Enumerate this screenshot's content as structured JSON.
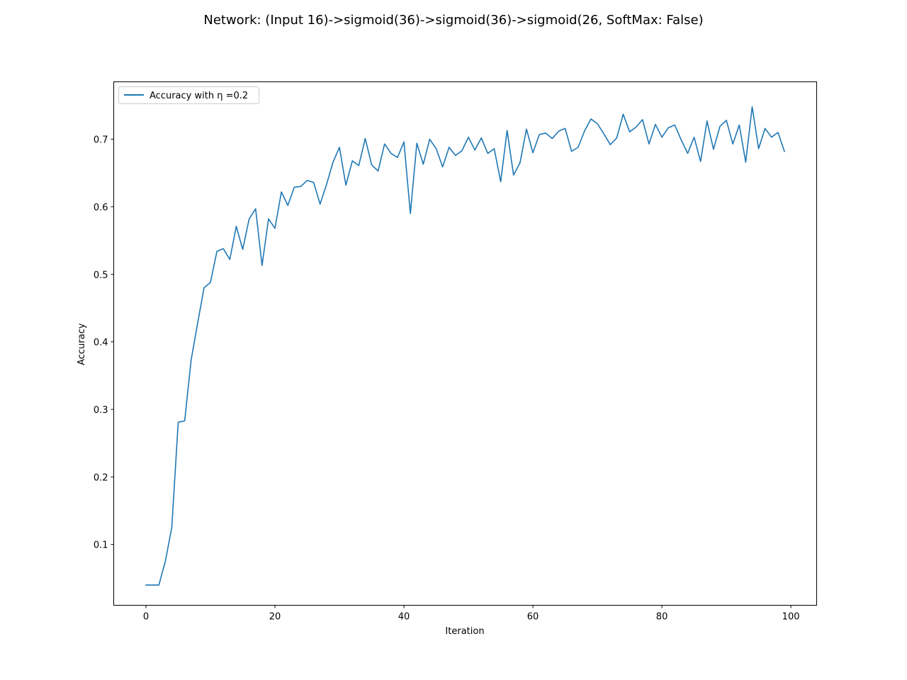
{
  "chart_data": {
    "type": "line",
    "title": "Network: (Input 16)->sigmoid(36)->sigmoid(36)->sigmoid(26, SoftMax: False)",
    "xlabel": "Iteration",
    "ylabel": "Accuracy",
    "xlim": [
      -5,
      104
    ],
    "ylim": [
      0.01,
      0.785
    ],
    "xticks": [
      0,
      20,
      40,
      60,
      80,
      100
    ],
    "yticks": [
      0.1,
      0.2,
      0.3,
      0.4,
      0.5,
      0.6,
      0.7
    ],
    "grid": false,
    "legend_position": "upper-left",
    "series": [
      {
        "name": "Accuracy with η =0.2",
        "color": "#1f77b4",
        "x": [
          0,
          1,
          2,
          3,
          4,
          5,
          6,
          7,
          8,
          9,
          10,
          11,
          12,
          13,
          14,
          15,
          16,
          17,
          18,
          19,
          20,
          21,
          22,
          23,
          24,
          25,
          26,
          27,
          28,
          29,
          30,
          31,
          32,
          33,
          34,
          35,
          36,
          37,
          38,
          39,
          40,
          41,
          42,
          43,
          44,
          45,
          46,
          47,
          48,
          49,
          50,
          51,
          52,
          53,
          54,
          55,
          56,
          57,
          58,
          59,
          60,
          61,
          62,
          63,
          64,
          65,
          66,
          67,
          68,
          69,
          70,
          71,
          72,
          73,
          74,
          75,
          76,
          77,
          78,
          79,
          80,
          81,
          82,
          83,
          84,
          85,
          86,
          87,
          88,
          89,
          90,
          91,
          92,
          93,
          94,
          95,
          96,
          97,
          98,
          99
        ],
        "values": [
          0.04,
          0.04,
          0.04,
          0.075,
          0.125,
          0.281,
          0.283,
          0.373,
          0.427,
          0.48,
          0.488,
          0.534,
          0.538,
          0.522,
          0.571,
          0.537,
          0.582,
          0.597,
          0.513,
          0.582,
          0.568,
          0.622,
          0.602,
          0.629,
          0.63,
          0.639,
          0.636,
          0.604,
          0.633,
          0.666,
          0.688,
          0.632,
          0.668,
          0.661,
          0.701,
          0.662,
          0.653,
          0.693,
          0.679,
          0.673,
          0.696,
          0.59,
          0.694,
          0.663,
          0.7,
          0.686,
          0.659,
          0.688,
          0.676,
          0.683,
          0.703,
          0.684,
          0.702,
          0.679,
          0.686,
          0.637,
          0.713,
          0.647,
          0.665,
          0.715,
          0.68,
          0.707,
          0.709,
          0.701,
          0.712,
          0.716,
          0.682,
          0.688,
          0.712,
          0.73,
          0.723,
          0.708,
          0.692,
          0.702,
          0.737,
          0.711,
          0.718,
          0.729,
          0.693,
          0.722,
          0.703,
          0.717,
          0.721,
          0.699,
          0.679,
          0.703,
          0.667,
          0.727,
          0.685,
          0.719,
          0.728,
          0.693,
          0.721,
          0.666,
          0.748,
          0.686,
          0.716,
          0.703,
          0.71,
          0.682
        ]
      }
    ]
  }
}
